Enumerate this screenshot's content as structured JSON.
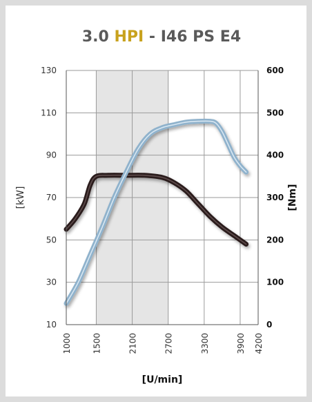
{
  "chart_data": {
    "type": "line",
    "title": {
      "part1": "3.0 ",
      "part2": "HPI",
      "part3": " - I46 PS E4",
      "highlight_color": "#c8a21e",
      "text_color": "#5a5a5a"
    },
    "xlabel": "[U/min]",
    "ylabel_left": "[kW]",
    "ylabel_right": "[Nm]",
    "xlim": [
      1000,
      4200
    ],
    "ylim_left": [
      10,
      130
    ],
    "ylim_right": [
      0,
      600
    ],
    "x_ticks": [
      "1000",
      "1500",
      "2100",
      "2700",
      "3300",
      "3900",
      "4200"
    ],
    "y_ticks_left": [
      "130",
      "110",
      "90",
      "70",
      "50",
      "30",
      "10"
    ],
    "y_ticks_right": [
      "600",
      "500",
      "400",
      "300",
      "200",
      "100",
      "0"
    ],
    "shaded_band": [
      1500,
      2700
    ],
    "grid": true,
    "series": [
      {
        "axis": "left",
        "color": "#2a1a1a",
        "x": [
          1000,
          1150,
          1300,
          1400,
          1500,
          1700,
          2000,
          2300,
          2600,
          2800,
          3000,
          3200,
          3400,
          3600,
          3800,
          4000
        ],
        "y": [
          55,
          60,
          67,
          76,
          80,
          80.5,
          80.5,
          80.5,
          79.5,
          77,
          73,
          67,
          61,
          56,
          52,
          48
        ]
      },
      {
        "axis": "right",
        "color": "#8fb2cc",
        "x": [
          1000,
          1200,
          1400,
          1600,
          1800,
          2000,
          2200,
          2400,
          2600,
          2800,
          3000,
          3200,
          3400,
          3500,
          3600,
          3700,
          3800,
          3900,
          4000
        ],
        "y": [
          50,
          100,
          165,
          230,
          300,
          360,
          415,
          450,
          465,
          472,
          478,
          480,
          480,
          475,
          455,
          425,
          395,
          375,
          360
        ]
      }
    ]
  }
}
